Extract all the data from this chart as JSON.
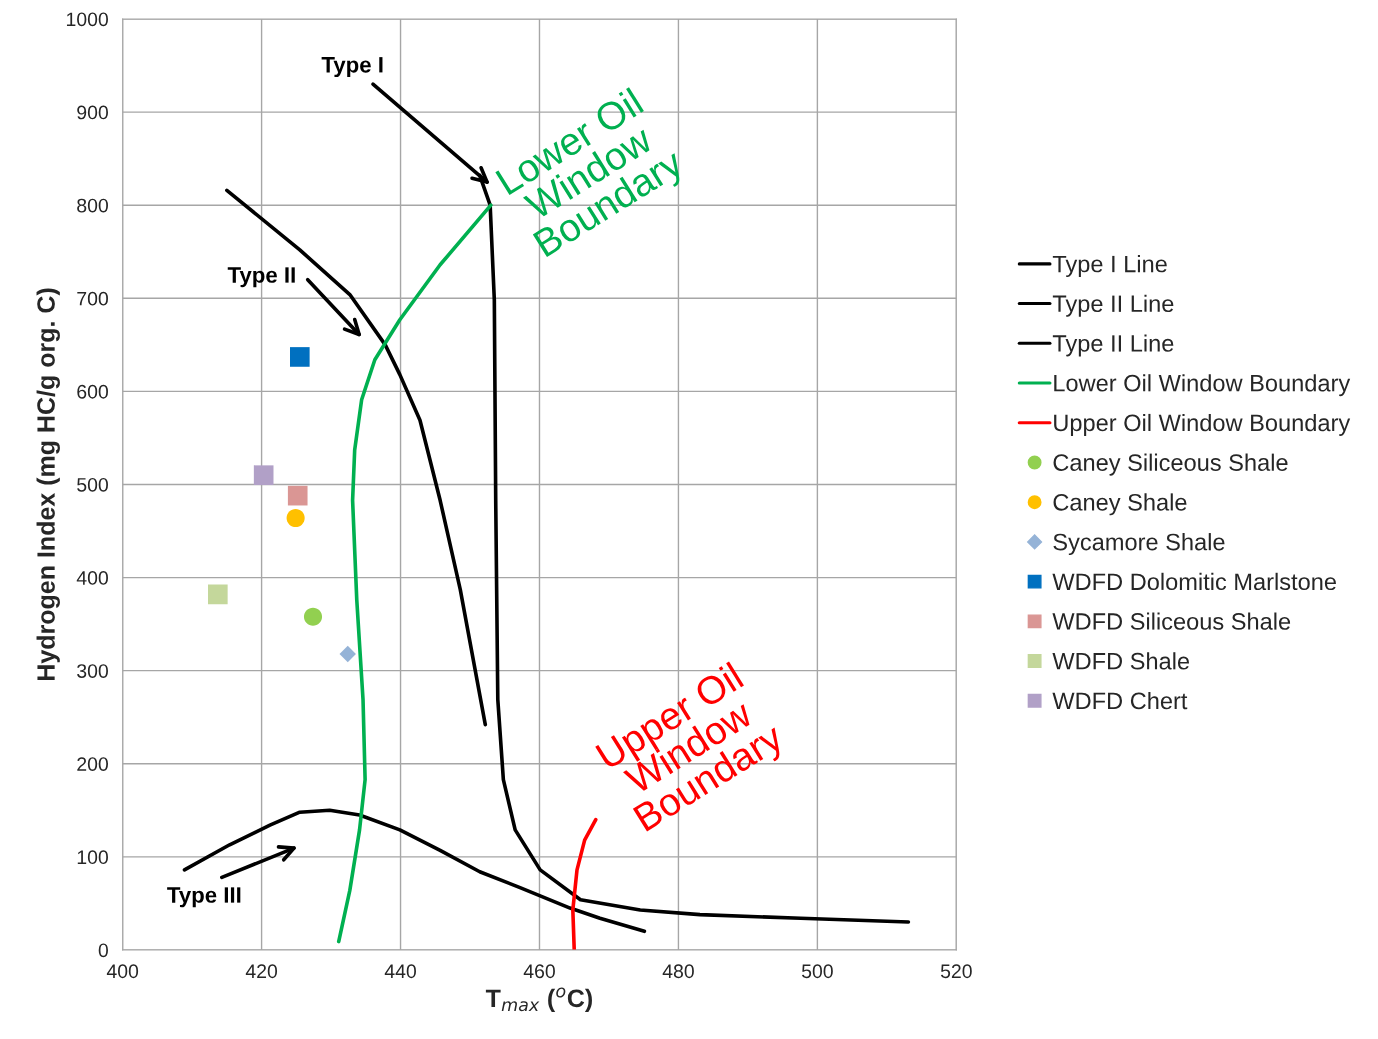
{
  "chart_data": {
    "type": "line",
    "xlabel": "T$_{max}$ ($^{o}$C)",
    "ylabel": "Hydrogen Index (mg HC/g org. C)",
    "xlim": [
      400,
      520
    ],
    "xticks": [
      400,
      420,
      440,
      460,
      480,
      500,
      520
    ],
    "ylim": [
      0,
      1000
    ],
    "yticks": [
      0,
      100,
      200,
      300,
      400,
      500,
      600,
      700,
      800,
      900,
      1000
    ],
    "grid": true,
    "legend": "right",
    "series": [
      {
        "name": "Type I Line",
        "color": "#000000",
        "x": [
          451.4,
          452.9,
          453.5,
          453.7,
          454.0,
          454.8,
          456.5,
          460.1,
          465.9,
          474.5,
          483.1,
          497.6,
          513.1
        ],
        "values": [
          832,
          800,
          698,
          483,
          269,
          183,
          129,
          86,
          54,
          43,
          38,
          34,
          30
        ]
      },
      {
        "name": "Type II Line",
        "color": "#000000",
        "x": [
          415.0,
          425.5,
          432.7,
          437.8,
          439.9,
          442.8,
          445.7,
          448.6,
          452.2
        ],
        "values": [
          816,
          752,
          704,
          650,
          618,
          569,
          483,
          387,
          242
        ]
      },
      {
        "name": "Type II Line",
        "color": "#000000",
        "x": [
          408.9,
          415.4,
          421.2,
          425.5,
          429.8,
          434.1,
          439.9,
          445.7,
          451.4,
          457.2,
          464.4,
          468.7,
          475.1
        ],
        "values": [
          86,
          113,
          134,
          148,
          150,
          145,
          129,
          107,
          84,
          67,
          45,
          34,
          20
        ]
      },
      {
        "name": "Lower Oil Window Boundary",
        "color": "#00b050",
        "x": [
          431.1,
          432.7,
          434.1,
          434.9,
          434.6,
          433.7,
          433.1,
          433.4,
          434.4,
          436.3,
          439.9,
          445.7,
          453.0
        ],
        "values": [
          9,
          64,
          129,
          183,
          269,
          376,
          483,
          537,
          591,
          634,
          677,
          736,
          800
        ]
      },
      {
        "name": "Upper Oil Window Boundary",
        "color": "#ff0000",
        "x": [
          465.0,
          464.8,
          465.4,
          466.5,
          468.1
        ],
        "values": [
          0,
          43,
          86,
          118,
          140
        ]
      },
      {
        "name": "Caney Siliceous Shale",
        "type": "scatter",
        "marker": "circle",
        "color": "#92d050",
        "x": [
          427.4
        ],
        "values": [
          358
        ]
      },
      {
        "name": "Caney Shale",
        "type": "scatter",
        "marker": "circle",
        "color": "#ffc000",
        "x": [
          424.9
        ],
        "values": [
          464
        ]
      },
      {
        "name": "Sycamore Shale",
        "type": "scatter",
        "marker": "diamond",
        "color": "#95b3d7",
        "x": [
          432.4
        ],
        "values": [
          318
        ]
      },
      {
        "name": "WDFD Dolomitic Marlstone",
        "type": "scatter",
        "marker": "square",
        "color": "#0070c0",
        "x": [
          425.5
        ],
        "values": [
          637
        ]
      },
      {
        "name": "WDFD Siliceous Shale",
        "type": "scatter",
        "marker": "square",
        "color": "#da9694",
        "x": [
          425.2
        ],
        "values": [
          488
        ]
      },
      {
        "name": "WDFD Shale",
        "type": "scatter",
        "marker": "square",
        "color": "#c4d79b",
        "x": [
          413.7
        ],
        "values": [
          382
        ]
      },
      {
        "name": "WDFD Chert",
        "type": "scatter",
        "marker": "square",
        "color": "#b1a0c7",
        "x": [
          420.3
        ],
        "values": [
          510
        ]
      }
    ],
    "annotations": [
      {
        "text": "Type I",
        "x": 452.9,
        "y": 822
      },
      "Type II",
      "Type III",
      "Lower Oil\nWindow\nBoundary",
      "Upper Oil\nWindow\nBoundary"
    ]
  }
}
